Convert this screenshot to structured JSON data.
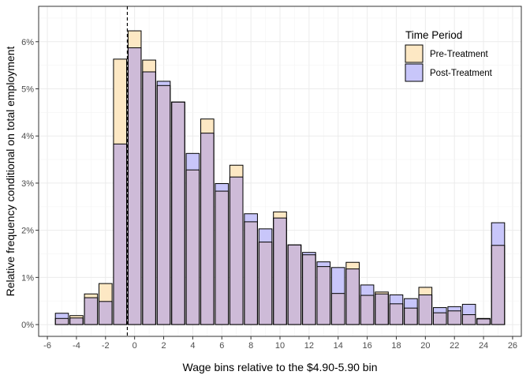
{
  "chart_data": {
    "type": "bar",
    "title": "",
    "xlabel": "Wage bins relative to the $4.90-5.90 bin",
    "ylabel": "Relative frequency conditional on total employment",
    "xlim": [
      -6.6,
      26.6
    ],
    "ylim": [
      -0.0025,
      0.0675
    ],
    "x_ticks": [
      -6,
      -4,
      -2,
      0,
      2,
      4,
      6,
      8,
      10,
      12,
      14,
      16,
      18,
      20,
      22,
      24,
      26
    ],
    "y_ticks": [
      0,
      0.01,
      0.02,
      0.03,
      0.04,
      0.05,
      0.06
    ],
    "y_tick_labels": [
      "0%",
      "1%",
      "2%",
      "3%",
      "4%",
      "5%",
      "6%"
    ],
    "x": [
      -5,
      -4,
      -3,
      -2,
      -1,
      0,
      1,
      2,
      3,
      4,
      5,
      6,
      7,
      8,
      9,
      10,
      11,
      12,
      13,
      14,
      15,
      16,
      17,
      18,
      19,
      20,
      21,
      22,
      23,
      24,
      25
    ],
    "series": [
      {
        "name": "Pre-Treatment",
        "values": [
          0.0013,
          0.0019,
          0.0065,
          0.0087,
          0.0563,
          0.0623,
          0.0561,
          0.0507,
          0.0472,
          0.0328,
          0.0436,
          0.0283,
          0.0338,
          0.0218,
          0.0175,
          0.0239,
          0.0169,
          0.0148,
          0.0123,
          0.0066,
          0.0132,
          0.0062,
          0.0069,
          0.0044,
          0.0035,
          0.0079,
          0.0025,
          0.0029,
          0.0021,
          0.0013,
          0.0168
        ],
        "color": "#fde8c4"
      },
      {
        "name": "Post-Treatment",
        "values": [
          0.0024,
          0.0014,
          0.0057,
          0.0049,
          0.0383,
          0.0587,
          0.0536,
          0.0516,
          0.0472,
          0.0363,
          0.0406,
          0.0299,
          0.0313,
          0.0235,
          0.0203,
          0.0226,
          0.0169,
          0.0153,
          0.0133,
          0.0121,
          0.0118,
          0.0084,
          0.0065,
          0.0063,
          0.0055,
          0.0063,
          0.0036,
          0.0038,
          0.0043,
          0.0012,
          0.0216
        ],
        "color": "#c8c6fa"
      }
    ],
    "overlap_color": "#cebbd8",
    "vline": -0.5,
    "grid": true,
    "legend": {
      "title": "Time Period",
      "position": "top-right",
      "items": [
        "Pre-Treatment",
        "Post-Treatment"
      ]
    }
  }
}
